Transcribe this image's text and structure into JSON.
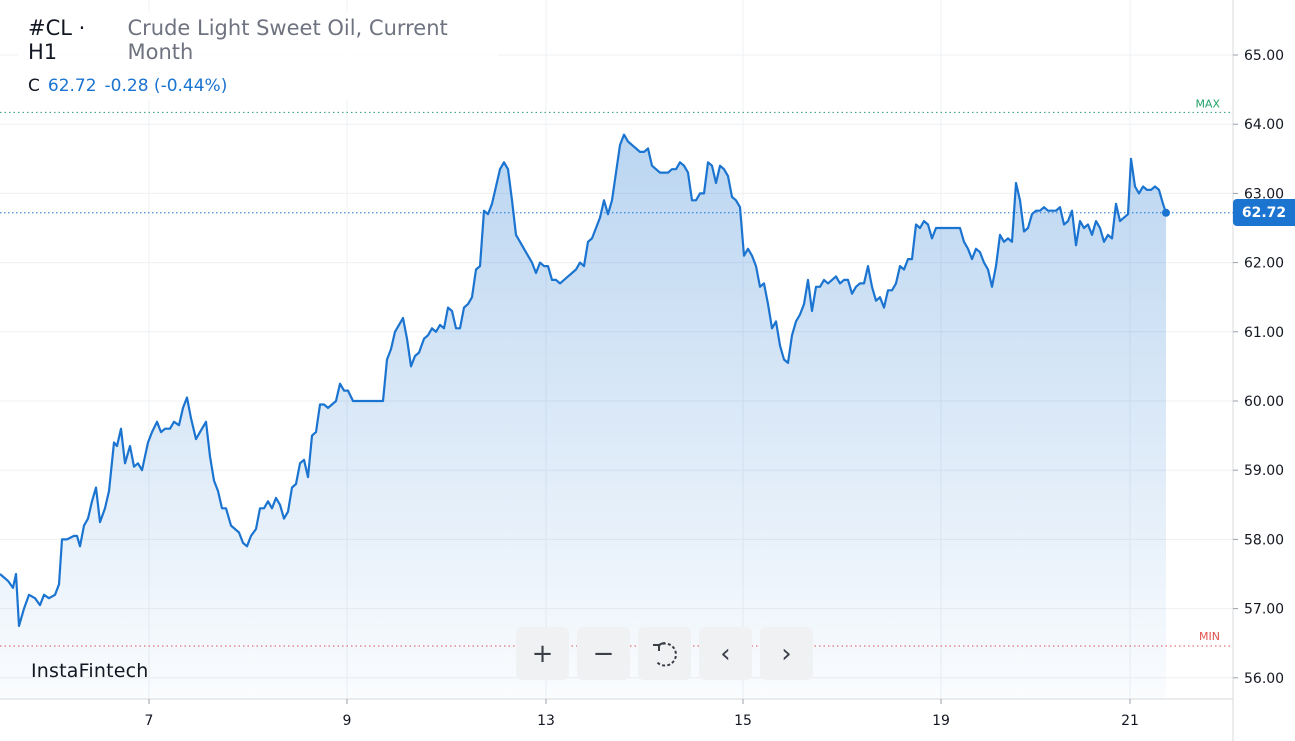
{
  "header": {
    "symbol": "#CL · H1",
    "description": "Crude Light Sweet Oil, Current Month",
    "quote_label": "C",
    "last": "62.72",
    "change": "-0.28 (-0.44%)"
  },
  "brand": "InstaFintech",
  "price_tag": "62.72",
  "colors": {
    "line": "#1b74d0",
    "max_line": "#26a269",
    "min_line": "#e0504d",
    "grid": "#eef0f3"
  },
  "toolbar": [
    {
      "name": "zoom-in-button",
      "icon": "plus-icon",
      "glyph": "+"
    },
    {
      "name": "zoom-out-button",
      "icon": "minus-icon",
      "glyph": "−"
    },
    {
      "name": "reset-button",
      "icon": "reset-icon",
      "glyph": ""
    },
    {
      "name": "scroll-left-button",
      "icon": "chevron-left-icon",
      "glyph": "‹"
    },
    {
      "name": "scroll-right-button",
      "icon": "chevron-right-icon",
      "glyph": "›"
    }
  ],
  "chart_data": {
    "type": "area",
    "x_tick_labels": [
      "7",
      "9",
      "13",
      "15",
      "19",
      "21"
    ],
    "y_tick_labels": [
      "56.00",
      "57.00",
      "58.00",
      "59.00",
      "60.00",
      "61.00",
      "62.00",
      "63.00",
      "64.00",
      "65.00"
    ],
    "ylim": [
      56.0,
      65.0
    ],
    "grid": true,
    "max_label": "MAX",
    "min_label": "MIN",
    "max_value": 64.17,
    "min_value": 56.46,
    "last_value": 62.72,
    "x_unit": "hour index (H1 bars)",
    "series": [
      {
        "points": [
          [
            0,
            57.5
          ],
          [
            8,
            57.4
          ],
          [
            13,
            57.3
          ],
          [
            16,
            57.5
          ],
          [
            19,
            56.75
          ],
          [
            24,
            57.0
          ],
          [
            29,
            57.2
          ],
          [
            35,
            57.15
          ],
          [
            40,
            57.05
          ],
          [
            44,
            57.2
          ],
          [
            49,
            57.15
          ],
          [
            55,
            57.2
          ],
          [
            59,
            57.35
          ],
          [
            62,
            58.0
          ],
          [
            67,
            58.0
          ],
          [
            74,
            58.05
          ],
          [
            77,
            58.05
          ],
          [
            80,
            57.9
          ],
          [
            84,
            58.2
          ],
          [
            88,
            58.3
          ],
          [
            92,
            58.55
          ],
          [
            96,
            58.75
          ],
          [
            100,
            58.25
          ],
          [
            105,
            58.45
          ],
          [
            109,
            58.7
          ],
          [
            114,
            59.4
          ],
          [
            117,
            59.35
          ],
          [
            121,
            59.6
          ],
          [
            125,
            59.1
          ],
          [
            130,
            59.35
          ],
          [
            134,
            59.05
          ],
          [
            138,
            59.1
          ],
          [
            142,
            59.0
          ],
          [
            148,
            59.4
          ],
          [
            152,
            59.55
          ],
          [
            157,
            59.7
          ],
          [
            161,
            59.55
          ],
          [
            165,
            59.6
          ],
          [
            170,
            59.6
          ],
          [
            174,
            59.7
          ],
          [
            179,
            59.65
          ],
          [
            183,
            59.9
          ],
          [
            187,
            60.05
          ],
          [
            191,
            59.75
          ],
          [
            196,
            59.45
          ],
          [
            200,
            59.55
          ],
          [
            206,
            59.7
          ],
          [
            210,
            59.2
          ],
          [
            214,
            58.85
          ],
          [
            218,
            58.7
          ],
          [
            222,
            58.45
          ],
          [
            226,
            58.45
          ],
          [
            231,
            58.2
          ],
          [
            235,
            58.15
          ],
          [
            239,
            58.1
          ],
          [
            243,
            57.95
          ],
          [
            247,
            57.9
          ],
          [
            251,
            58.05
          ],
          [
            256,
            58.15
          ],
          [
            260,
            58.45
          ],
          [
            264,
            58.45
          ],
          [
            268,
            58.55
          ],
          [
            272,
            58.45
          ],
          [
            276,
            58.6
          ],
          [
            280,
            58.5
          ],
          [
            284,
            58.3
          ],
          [
            288,
            58.4
          ],
          [
            292,
            58.75
          ],
          [
            296,
            58.8
          ],
          [
            300,
            59.1
          ],
          [
            304,
            59.15
          ],
          [
            308,
            58.9
          ],
          [
            312,
            59.5
          ],
          [
            316,
            59.55
          ],
          [
            320,
            59.95
          ],
          [
            324,
            59.95
          ],
          [
            328,
            59.9
          ],
          [
            332,
            59.95
          ],
          [
            336,
            60.0
          ],
          [
            340,
            60.25
          ],
          [
            344,
            60.15
          ],
          [
            348,
            60.15
          ],
          [
            353,
            60.0
          ],
          [
            357,
            60.0
          ],
          [
            361,
            60.0
          ],
          [
            366,
            60.0
          ],
          [
            370,
            60.0
          ],
          [
            375,
            60.0
          ],
          [
            379,
            60.0
          ],
          [
            383,
            60.0
          ],
          [
            387,
            60.6
          ],
          [
            391,
            60.75
          ],
          [
            395,
            61.0
          ],
          [
            399,
            61.1
          ],
          [
            403,
            61.2
          ],
          [
            407,
            60.9
          ],
          [
            411,
            60.5
          ],
          [
            415,
            60.65
          ],
          [
            419,
            60.7
          ],
          [
            424,
            60.9
          ],
          [
            428,
            60.95
          ],
          [
            432,
            61.05
          ],
          [
            436,
            61.0
          ],
          [
            440,
            61.1
          ],
          [
            444,
            61.05
          ],
          [
            448,
            61.35
          ],
          [
            452,
            61.3
          ],
          [
            456,
            61.05
          ],
          [
            460,
            61.05
          ],
          [
            464,
            61.35
          ],
          [
            468,
            61.4
          ],
          [
            472,
            61.5
          ],
          [
            476,
            61.9
          ],
          [
            480,
            61.95
          ],
          [
            484,
            62.75
          ],
          [
            488,
            62.7
          ],
          [
            492,
            62.85
          ],
          [
            496,
            63.1
          ],
          [
            500,
            63.35
          ],
          [
            504,
            63.45
          ],
          [
            508,
            63.35
          ],
          [
            512,
            62.9
          ],
          [
            516,
            62.4
          ],
          [
            520,
            62.3
          ],
          [
            524,
            62.2
          ],
          [
            528,
            62.1
          ],
          [
            532,
            62.0
          ],
          [
            536,
            61.85
          ],
          [
            540,
            62.0
          ],
          [
            544,
            61.95
          ],
          [
            548,
            61.95
          ],
          [
            552,
            61.75
          ],
          [
            556,
            61.75
          ],
          [
            560,
            61.7
          ],
          [
            564,
            61.75
          ],
          [
            568,
            61.8
          ],
          [
            572,
            61.85
          ],
          [
            576,
            61.9
          ],
          [
            580,
            62.0
          ],
          [
            584,
            61.95
          ],
          [
            588,
            62.3
          ],
          [
            592,
            62.35
          ],
          [
            596,
            62.5
          ],
          [
            600,
            62.65
          ],
          [
            604,
            62.9
          ],
          [
            608,
            62.7
          ],
          [
            612,
            62.9
          ],
          [
            616,
            63.3
          ],
          [
            620,
            63.7
          ],
          [
            624,
            63.85
          ],
          [
            628,
            63.75
          ],
          [
            632,
            63.7
          ],
          [
            636,
            63.65
          ],
          [
            640,
            63.6
          ],
          [
            644,
            63.6
          ],
          [
            648,
            63.65
          ],
          [
            652,
            63.4
          ],
          [
            656,
            63.35
          ],
          [
            660,
            63.3
          ],
          [
            664,
            63.3
          ],
          [
            668,
            63.3
          ],
          [
            672,
            63.35
          ],
          [
            676,
            63.35
          ],
          [
            680,
            63.45
          ],
          [
            684,
            63.4
          ],
          [
            688,
            63.3
          ],
          [
            692,
            62.9
          ],
          [
            696,
            62.9
          ],
          [
            700,
            63.0
          ],
          [
            704,
            63.0
          ],
          [
            708,
            63.45
          ],
          [
            712,
            63.4
          ],
          [
            716,
            63.15
          ],
          [
            720,
            63.4
          ],
          [
            724,
            63.35
          ],
          [
            728,
            63.25
          ],
          [
            732,
            62.95
          ],
          [
            736,
            62.9
          ],
          [
            740,
            62.8
          ],
          [
            744,
            62.1
          ],
          [
            748,
            62.2
          ],
          [
            752,
            62.1
          ],
          [
            756,
            61.95
          ],
          [
            760,
            61.65
          ],
          [
            764,
            61.7
          ],
          [
            768,
            61.4
          ],
          [
            772,
            61.05
          ],
          [
            776,
            61.15
          ],
          [
            780,
            60.8
          ],
          [
            784,
            60.6
          ],
          [
            788,
            60.55
          ],
          [
            792,
            60.95
          ],
          [
            796,
            61.15
          ],
          [
            800,
            61.25
          ],
          [
            804,
            61.4
          ],
          [
            808,
            61.75
          ],
          [
            812,
            61.3
          ],
          [
            816,
            61.65
          ],
          [
            820,
            61.65
          ],
          [
            824,
            61.75
          ],
          [
            828,
            61.7
          ],
          [
            832,
            61.75
          ],
          [
            836,
            61.8
          ],
          [
            840,
            61.7
          ],
          [
            844,
            61.75
          ],
          [
            848,
            61.75
          ],
          [
            852,
            61.55
          ],
          [
            856,
            61.65
          ],
          [
            860,
            61.7
          ],
          [
            864,
            61.7
          ],
          [
            868,
            61.95
          ],
          [
            872,
            61.65
          ],
          [
            876,
            61.45
          ],
          [
            880,
            61.5
          ],
          [
            884,
            61.35
          ],
          [
            888,
            61.6
          ],
          [
            892,
            61.6
          ],
          [
            896,
            61.7
          ],
          [
            900,
            61.95
          ],
          [
            904,
            61.9
          ],
          [
            908,
            62.05
          ],
          [
            912,
            62.05
          ],
          [
            916,
            62.55
          ],
          [
            920,
            62.5
          ],
          [
            924,
            62.6
          ],
          [
            928,
            62.55
          ],
          [
            932,
            62.35
          ],
          [
            936,
            62.5
          ],
          [
            940,
            62.5
          ],
          [
            944,
            62.5
          ],
          [
            948,
            62.5
          ],
          [
            952,
            62.5
          ],
          [
            956,
            62.5
          ],
          [
            960,
            62.5
          ],
          [
            964,
            62.3
          ],
          [
            968,
            62.2
          ],
          [
            972,
            62.05
          ],
          [
            976,
            62.2
          ],
          [
            980,
            62.15
          ],
          [
            984,
            62.0
          ],
          [
            988,
            61.9
          ],
          [
            992,
            61.65
          ],
          [
            996,
            61.95
          ],
          [
            1000,
            62.4
          ],
          [
            1004,
            62.3
          ],
          [
            1008,
            62.35
          ],
          [
            1012,
            62.3
          ],
          [
            1016,
            63.15
          ],
          [
            1020,
            62.9
          ],
          [
            1024,
            62.45
          ],
          [
            1028,
            62.5
          ],
          [
            1032,
            62.7
          ],
          [
            1036,
            62.75
          ],
          [
            1040,
            62.75
          ],
          [
            1044,
            62.8
          ],
          [
            1048,
            62.75
          ],
          [
            1052,
            62.75
          ],
          [
            1056,
            62.75
          ],
          [
            1060,
            62.8
          ],
          [
            1064,
            62.55
          ],
          [
            1068,
            62.6
          ],
          [
            1072,
            62.75
          ],
          [
            1076,
            62.25
          ],
          [
            1080,
            62.6
          ],
          [
            1084,
            62.5
          ],
          [
            1088,
            62.55
          ],
          [
            1092,
            62.4
          ],
          [
            1096,
            62.6
          ],
          [
            1100,
            62.5
          ],
          [
            1104,
            62.3
          ],
          [
            1108,
            62.4
          ],
          [
            1112,
            62.35
          ],
          [
            1116,
            62.85
          ],
          [
            1120,
            62.6
          ],
          [
            1124,
            62.65
          ],
          [
            1128,
            62.7
          ],
          [
            1131,
            63.5
          ],
          [
            1135,
            63.1
          ],
          [
            1139,
            63.0
          ],
          [
            1143,
            63.1
          ],
          [
            1147,
            63.05
          ],
          [
            1151,
            63.05
          ],
          [
            1155,
            63.1
          ],
          [
            1159,
            63.05
          ],
          [
            1163,
            62.85
          ],
          [
            1166,
            62.72
          ]
        ]
      }
    ]
  }
}
